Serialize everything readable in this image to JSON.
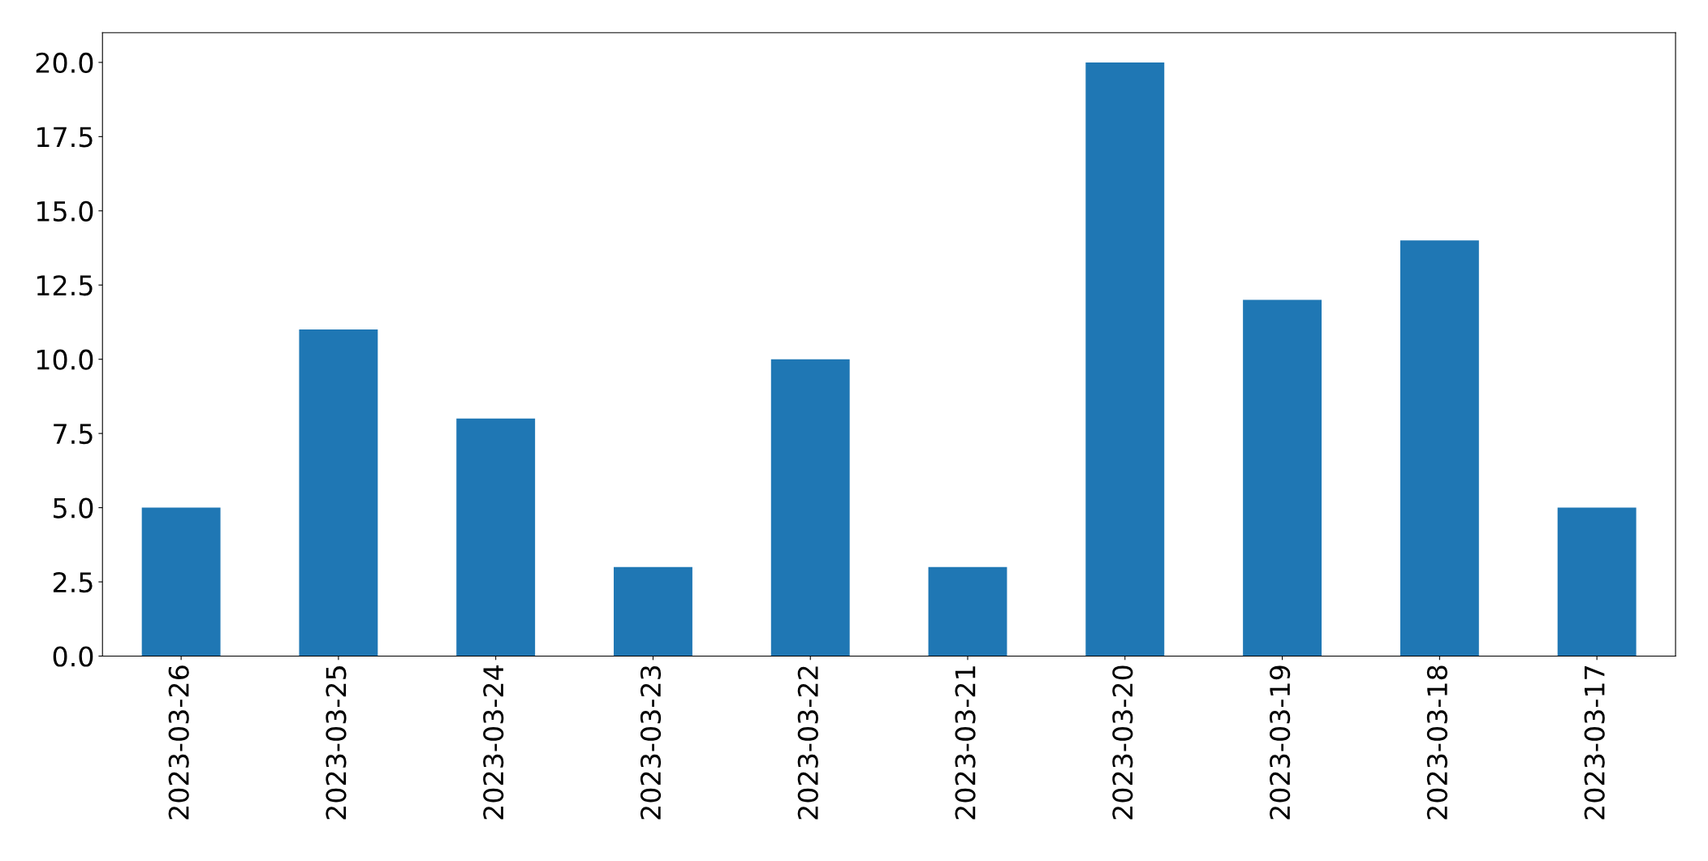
{
  "chart_data": {
    "type": "bar",
    "categories": [
      "2023-03-26",
      "2023-03-25",
      "2023-03-24",
      "2023-03-23",
      "2023-03-22",
      "2023-03-21",
      "2023-03-20",
      "2023-03-19",
      "2023-03-18",
      "2023-03-17"
    ],
    "values": [
      5,
      11,
      8,
      3,
      10,
      3,
      20,
      12,
      14,
      5
    ],
    "color": "#1f77b4",
    "ylim": [
      0,
      21
    ],
    "yticks": [
      {
        "value": 0,
        "label": "0.0"
      },
      {
        "value": 2.5,
        "label": "2.5"
      },
      {
        "value": 5,
        "label": "5.0"
      },
      {
        "value": 7.5,
        "label": "7.5"
      },
      {
        "value": 10,
        "label": "10.0"
      },
      {
        "value": 12.5,
        "label": "12.5"
      },
      {
        "value": 15,
        "label": "15.0"
      },
      {
        "value": 17.5,
        "label": "17.5"
      },
      {
        "value": 20,
        "label": "20.0"
      }
    ],
    "grid": false
  }
}
